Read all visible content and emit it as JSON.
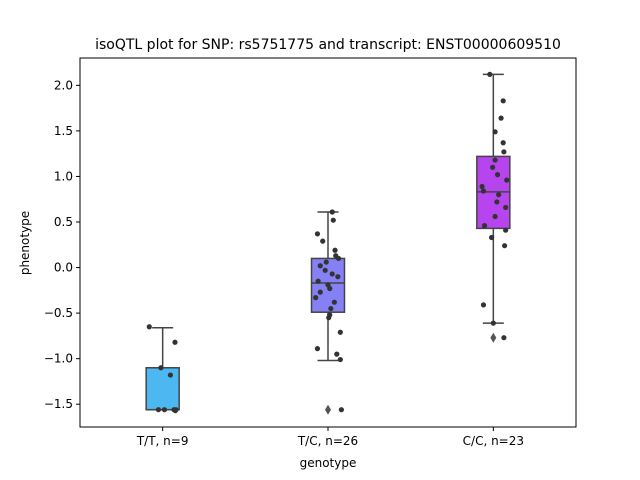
{
  "chart_data": {
    "type": "box",
    "title": "isoQTL plot for SNP: rs5751775 and transcript: ENST00000609510",
    "xlabel": "genotype",
    "ylabel": "phenotype",
    "ylim": [
      -1.75,
      2.3
    ],
    "yticks": [
      -1.5,
      -1.0,
      -0.5,
      0.0,
      0.5,
      1.0,
      1.5,
      2.0
    ],
    "ytick_labels": [
      "−1.5",
      "−1.0",
      "−0.5",
      "0.0",
      "0.5",
      "1.0",
      "1.5",
      "2.0"
    ],
    "grid": false,
    "categories": [
      "T/T, n=9",
      "T/C, n=26",
      "C/C, n=23"
    ],
    "boxes": [
      {
        "category": "T/T, n=9",
        "color": "#4cb7f0",
        "whisker_low": -1.56,
        "q1": -1.56,
        "median": -1.56,
        "q3": -1.1,
        "whisker_high": -0.66,
        "outliers": [],
        "points": [
          {
            "offset": -0.38,
            "y": -0.65
          },
          {
            "offset": 0.35,
            "y": -0.82
          },
          {
            "offset": -0.05,
            "y": -1.1
          },
          {
            "offset": 0.22,
            "y": -1.18
          },
          {
            "offset": -0.12,
            "y": -1.56
          },
          {
            "offset": 0.05,
            "y": -1.56
          },
          {
            "offset": 0.32,
            "y": -1.56
          },
          {
            "offset": 0.36,
            "y": -1.57
          },
          {
            "offset": 0.38,
            "y": -1.56
          }
        ]
      },
      {
        "category": "T/C, n=26",
        "color": "#8580f3",
        "whisker_low": -1.02,
        "q1": -0.49,
        "median": -0.17,
        "q3": 0.1,
        "whisker_high": 0.61,
        "outliers": [
          -1.56
        ],
        "points": [
          {
            "offset": 0.12,
            "y": 0.61
          },
          {
            "offset": 0.15,
            "y": 0.52
          },
          {
            "offset": -0.3,
            "y": 0.37
          },
          {
            "offset": -0.15,
            "y": 0.29
          },
          {
            "offset": 0.2,
            "y": 0.19
          },
          {
            "offset": 0.22,
            "y": 0.13
          },
          {
            "offset": 0.3,
            "y": 0.1
          },
          {
            "offset": -0.05,
            "y": 0.06
          },
          {
            "offset": -0.22,
            "y": 0.02
          },
          {
            "offset": -0.08,
            "y": -0.03
          },
          {
            "offset": 0.12,
            "y": -0.07
          },
          {
            "offset": 0.28,
            "y": -0.1
          },
          {
            "offset": -0.28,
            "y": -0.15
          },
          {
            "offset": 0.0,
            "y": -0.19
          },
          {
            "offset": 0.05,
            "y": -0.23
          },
          {
            "offset": -0.22,
            "y": -0.27
          },
          {
            "offset": -0.35,
            "y": -0.33
          },
          {
            "offset": 0.18,
            "y": -0.38
          },
          {
            "offset": 0.08,
            "y": -0.45
          },
          {
            "offset": 0.05,
            "y": -0.52
          },
          {
            "offset": 0.02,
            "y": -0.55
          },
          {
            "offset": 0.35,
            "y": -0.71
          },
          {
            "offset": -0.3,
            "y": -0.89
          },
          {
            "offset": 0.25,
            "y": -0.95
          },
          {
            "offset": 0.35,
            "y": -1.01
          },
          {
            "offset": 0.38,
            "y": -1.56
          }
        ]
      },
      {
        "category": "C/C, n=23",
        "color": "#b644ef",
        "whisker_low": -0.61,
        "q1": 0.43,
        "median": 0.83,
        "q3": 1.22,
        "whisker_high": 2.12,
        "outliers": [
          -0.77
        ],
        "points": [
          {
            "offset": -0.1,
            "y": 2.12
          },
          {
            "offset": 0.28,
            "y": 1.83
          },
          {
            "offset": 0.22,
            "y": 1.64
          },
          {
            "offset": 0.05,
            "y": 1.49
          },
          {
            "offset": 0.28,
            "y": 1.37
          },
          {
            "offset": 0.3,
            "y": 1.27
          },
          {
            "offset": 0.05,
            "y": 1.18
          },
          {
            "offset": -0.02,
            "y": 1.1
          },
          {
            "offset": 0.12,
            "y": 1.02
          },
          {
            "offset": 0.38,
            "y": 0.96
          },
          {
            "offset": -0.32,
            "y": 0.89
          },
          {
            "offset": -0.28,
            "y": 0.84
          },
          {
            "offset": 0.15,
            "y": 0.8
          },
          {
            "offset": 0.1,
            "y": 0.72
          },
          {
            "offset": 0.35,
            "y": 0.66
          },
          {
            "offset": 0.05,
            "y": 0.56
          },
          {
            "offset": -0.25,
            "y": 0.46
          },
          {
            "offset": 0.35,
            "y": 0.41
          },
          {
            "offset": -0.05,
            "y": 0.33
          },
          {
            "offset": 0.32,
            "y": 0.24
          },
          {
            "offset": -0.28,
            "y": -0.41
          },
          {
            "offset": 0.0,
            "y": -0.61
          },
          {
            "offset": 0.3,
            "y": -0.77
          }
        ]
      }
    ]
  }
}
